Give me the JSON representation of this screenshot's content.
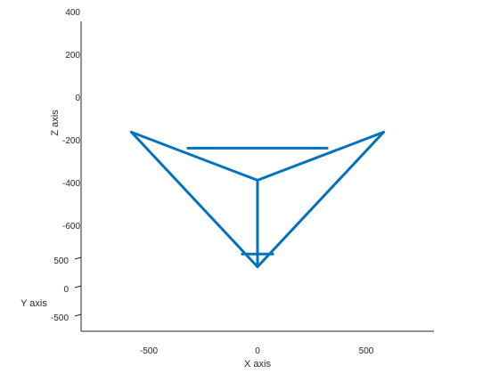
{
  "chart_data": {
    "type": "line",
    "title": "",
    "xlabel": "X axis",
    "ylabel": "Y axis",
    "zlabel": "Z axis",
    "color": "#0072BD",
    "x_ticks": [
      "-500",
      "0",
      "500"
    ],
    "y_ticks": [
      "-500",
      "0",
      "500"
    ],
    "z_ticks": [
      "400",
      "200",
      "0",
      "-200",
      "-400",
      "-600"
    ],
    "xlim": [
      -800,
      800
    ],
    "zlim": [
      -800,
      400
    ],
    "series": [
      {
        "values": [
          {
            "x": -580,
            "z": -160
          },
          {
            "x": 580,
            "z": -160
          },
          {
            "x": 0,
            "z": -385
          },
          {
            "x": -320,
            "z": -235
          },
          {
            "x": 320,
            "z": -235
          },
          {
            "x": 0,
            "z": -790
          },
          {
            "x": -70,
            "z": -730
          },
          {
            "x": 70,
            "z": -730
          }
        ],
        "edges": [
          [
            0,
            2
          ],
          [
            1,
            2
          ],
          [
            0,
            5
          ],
          [
            1,
            5
          ],
          [
            2,
            5
          ],
          [
            3,
            4
          ],
          [
            6,
            7
          ]
        ]
      }
    ]
  }
}
